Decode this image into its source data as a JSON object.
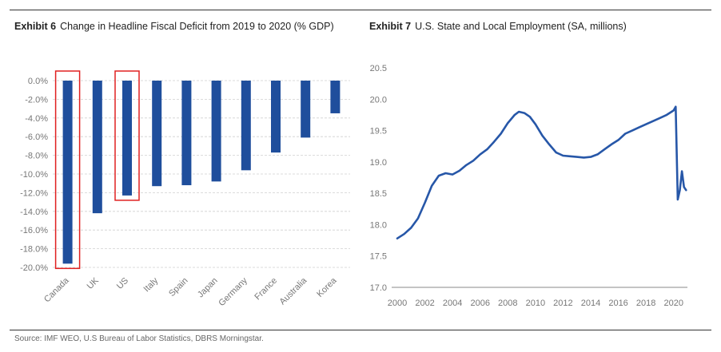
{
  "exhibit6": {
    "label": "Exhibit 6",
    "title": "Change in Headline Fiscal Deficit from 2019 to 2020 (% GDP)"
  },
  "exhibit7": {
    "label": "Exhibit 7",
    "title": "U.S. State and Local Employment (SA, millions)"
  },
  "source": "Source: IMF WEO, U.S Bureau of Labor Statistics, DBRS Morningstar.",
  "colors": {
    "bar": "#1f4e9c",
    "line": "#2757a8",
    "highlight": "#e02020",
    "grid": "#d0d0d0"
  },
  "chart_data": [
    {
      "type": "bar",
      "title": "Change in Headline Fiscal Deficit from 2019 to 2020 (% GDP)",
      "categories": [
        "Canada",
        "UK",
        "US",
        "Italy",
        "Spain",
        "Japan",
        "Germany",
        "France",
        "Australia",
        "Korea"
      ],
      "values": [
        -19.6,
        -14.2,
        -12.3,
        -11.3,
        -11.2,
        -10.8,
        -9.6,
        -7.7,
        -6.1,
        -3.5
      ],
      "highlighted": [
        "Canada",
        "US"
      ],
      "ylim": [
        -20,
        0
      ],
      "yticks": [
        "0.0%",
        "-2.0%",
        "-4.0%",
        "-6.0%",
        "-8.0%",
        "-10.0%",
        "-12.0%",
        "-14.0%",
        "-16.0%",
        "-18.0%",
        "-20.0%"
      ],
      "xlabel": "",
      "ylabel": "",
      "grid": true
    },
    {
      "type": "line",
      "title": "U.S. State and Local Employment (SA, millions)",
      "series": [
        {
          "name": "State and Local Employment",
          "x": [
            2000.0,
            2000.5,
            2001.0,
            2001.5,
            2002.0,
            2002.5,
            2003.0,
            2003.5,
            2004.0,
            2004.5,
            2005.0,
            2005.5,
            2006.0,
            2006.5,
            2007.0,
            2007.5,
            2008.0,
            2008.5,
            2008.8,
            2009.2,
            2009.6,
            2010.0,
            2010.5,
            2011.0,
            2011.5,
            2012.0,
            2012.5,
            2013.0,
            2013.5,
            2014.0,
            2014.5,
            2015.0,
            2015.5,
            2016.0,
            2016.5,
            2017.0,
            2017.5,
            2018.0,
            2018.5,
            2019.0,
            2019.5,
            2020.0,
            2020.15,
            2020.3,
            2020.45,
            2020.6,
            2020.75,
            2020.9
          ],
          "values": [
            17.78,
            17.85,
            17.95,
            18.1,
            18.35,
            18.62,
            18.78,
            18.82,
            18.8,
            18.86,
            18.95,
            19.02,
            19.12,
            19.2,
            19.32,
            19.45,
            19.62,
            19.75,
            19.8,
            19.78,
            19.72,
            19.6,
            19.42,
            19.28,
            19.15,
            19.1,
            19.09,
            19.08,
            19.07,
            19.08,
            19.12,
            19.2,
            19.28,
            19.35,
            19.45,
            19.5,
            19.55,
            19.6,
            19.65,
            19.7,
            19.75,
            19.82,
            19.88,
            18.4,
            18.55,
            18.85,
            18.6,
            18.55
          ]
        }
      ],
      "xlim": [
        2000,
        2021
      ],
      "ylim": [
        17.0,
        20.5
      ],
      "xticks": [
        "2000",
        "2002",
        "2004",
        "2006",
        "2008",
        "2010",
        "2012",
        "2014",
        "2016",
        "2018",
        "2020"
      ],
      "yticks": [
        "20.5",
        "20.0",
        "19.5",
        "19.0",
        "18.5",
        "18.0",
        "17.5",
        "17.0"
      ],
      "xlabel": "",
      "ylabel": "",
      "grid": false
    }
  ]
}
